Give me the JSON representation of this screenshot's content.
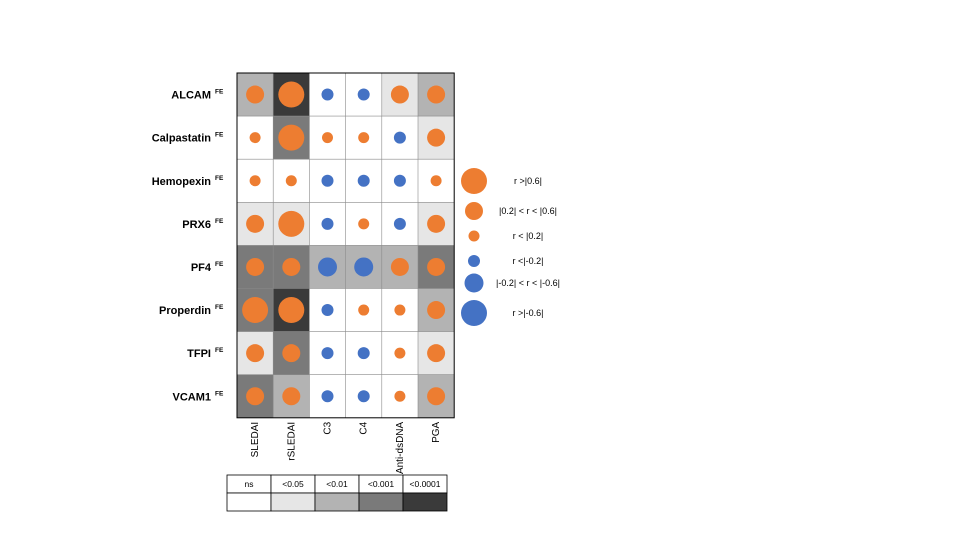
{
  "chart_data": {
    "type": "heatmap",
    "title": "",
    "rows": [
      "ALCAM",
      "Calpastatin",
      "Hemopexin",
      "PRX6",
      "PF4",
      "Properdin",
      "TFPI",
      "VCAM1"
    ],
    "row_superscript": "FE",
    "columns": [
      "SLEDAI",
      "rSLEDAI",
      "C3",
      "C4",
      "Anti-dsDNA",
      "PGA"
    ],
    "colors": {
      "positive": "#ED7D31",
      "negative": "#4472C4",
      "ns": "#FFFFFF",
      "p_lt_0.05": "#E6E6E6",
      "p_lt_0.01": "#B3B3B3",
      "p_lt_0.001": "#7A7A7A",
      "p_lt_0.0001": "#3A3A3A"
    },
    "correlation_bin": [
      [
        "pos_mid",
        "pos_high",
        "neg_low",
        "neg_low",
        "pos_mid",
        "pos_mid"
      ],
      [
        "pos_low",
        "pos_high",
        "pos_low",
        "pos_low",
        "neg_low",
        "pos_mid"
      ],
      [
        "pos_low",
        "pos_low",
        "neg_low",
        "neg_low",
        "neg_low",
        "pos_low"
      ],
      [
        "pos_mid",
        "pos_high",
        "neg_low",
        "pos_low",
        "neg_low",
        "pos_mid"
      ],
      [
        "pos_mid",
        "pos_mid",
        "neg_mid",
        "neg_mid",
        "pos_mid",
        "pos_mid"
      ],
      [
        "pos_high",
        "pos_high",
        "neg_low",
        "pos_low",
        "pos_low",
        "pos_mid"
      ],
      [
        "pos_mid",
        "pos_mid",
        "neg_low",
        "neg_low",
        "pos_low",
        "pos_mid"
      ],
      [
        "pos_mid",
        "pos_mid",
        "neg_low",
        "neg_low",
        "pos_low",
        "pos_mid"
      ]
    ],
    "p_value_level": [
      [
        "<0.01",
        "<0.0001",
        "ns",
        "ns",
        "<0.05",
        "<0.01"
      ],
      [
        "ns",
        "<0.001",
        "ns",
        "ns",
        "ns",
        "<0.05"
      ],
      [
        "ns",
        "ns",
        "ns",
        "ns",
        "ns",
        "ns"
      ],
      [
        "<0.05",
        "<0.05",
        "ns",
        "ns",
        "ns",
        "<0.05"
      ],
      [
        "<0.001",
        "<0.001",
        "<0.01",
        "<0.01",
        "<0.01",
        "<0.001"
      ],
      [
        "<0.001",
        "<0.0001",
        "ns",
        "ns",
        "ns",
        "<0.01"
      ],
      [
        "<0.05",
        "<0.001",
        "ns",
        "ns",
        "ns",
        "<0.05"
      ],
      [
        "<0.001",
        "<0.01",
        "ns",
        "ns",
        "ns",
        "<0.01"
      ]
    ],
    "size_legend": [
      {
        "label": "r >|0.6|",
        "bin": "pos_high"
      },
      {
        "label": "|0.2| < r < |0.6|",
        "bin": "pos_mid"
      },
      {
        "label": "r < |0.2|",
        "bin": "pos_low"
      },
      {
        "label": "r <|-0.2|",
        "bin": "neg_low"
      },
      {
        "label": "|-0.2| < r < |-0.6|",
        "bin": "neg_mid"
      },
      {
        "label": "r >|-0.6|",
        "bin": "neg_high"
      }
    ],
    "p_legend": [
      "ns",
      "<0.05",
      "<0.01",
      "<0.001",
      "<0.0001"
    ]
  }
}
